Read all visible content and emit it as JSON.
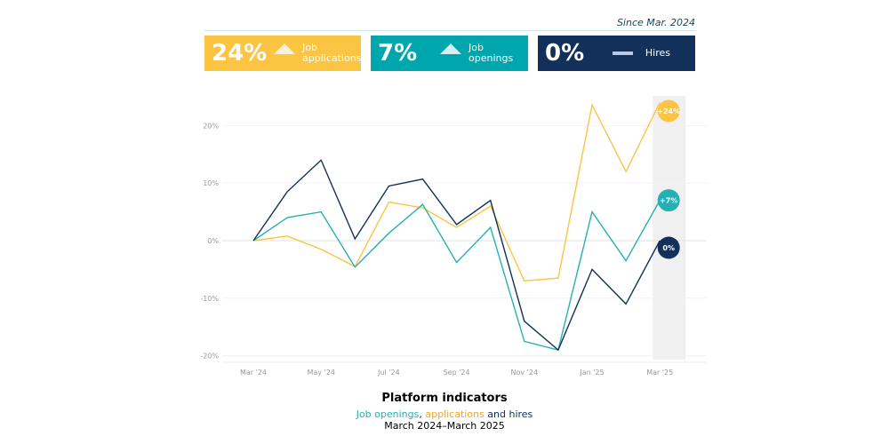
{
  "header": {
    "since": "Since Mar. 2024"
  },
  "cards": [
    {
      "value": "24%",
      "trend": "up",
      "label": "Job applications",
      "color": "#fbc443",
      "icon_color": "#fdf0d6"
    },
    {
      "value": "7%",
      "trend": "up",
      "label": "Job openings",
      "color": "#00a6ad",
      "icon_color": "#d5eef0"
    },
    {
      "value": "0%",
      "trend": "flat",
      "label": "Hires",
      "color": "#13305b",
      "icon_color": "#b8c8e8"
    }
  ],
  "footer": {
    "title": "Platform indicators",
    "sub_openings": "Job openings",
    "sub_comma": ", ",
    "sub_applications": "applications",
    "sub_and": " and hires",
    "period": "March 2024–March 2025"
  },
  "chart_data": {
    "type": "line",
    "x": [
      "Mar '24",
      "Apr '24",
      "May '24",
      "Jun '24",
      "Jul '24",
      "Aug '24",
      "Sep '24",
      "Oct '24",
      "Nov '24",
      "Dec '24",
      "Jan '25",
      "Feb '25",
      "Mar '25"
    ],
    "xticks": [
      "Mar '24",
      "May '24",
      "Jul '24",
      "Sep '24",
      "Nov '24",
      "Jan '25",
      "Mar '25"
    ],
    "yticks": [
      "20%",
      "10%",
      "0%",
      "-10%",
      "-20%"
    ],
    "ylim": [
      -20,
      20
    ],
    "grid": true,
    "series": [
      {
        "name": "applications",
        "color": "#fbc443",
        "end_label": "+24%",
        "values": [
          0,
          0.8,
          -1.5,
          -4.5,
          6.7,
          5.7,
          2.3,
          6,
          -7,
          -6.5,
          23.6,
          12,
          24
        ]
      },
      {
        "name": "Job openings",
        "color": "#27b0b3",
        "end_label": "+7%",
        "values": [
          0,
          4,
          5,
          -4.6,
          1.3,
          6.3,
          -3.8,
          2.3,
          -17.5,
          -19,
          5,
          -3.5,
          7
        ]
      },
      {
        "name": "hires",
        "color": "#13305b",
        "end_label": "0%",
        "values": [
          0,
          8.5,
          14,
          0.3,
          9.5,
          10.7,
          2.8,
          7,
          -14,
          -19,
          -5,
          -11,
          0
        ]
      }
    ],
    "highlight": "Mar '25"
  }
}
